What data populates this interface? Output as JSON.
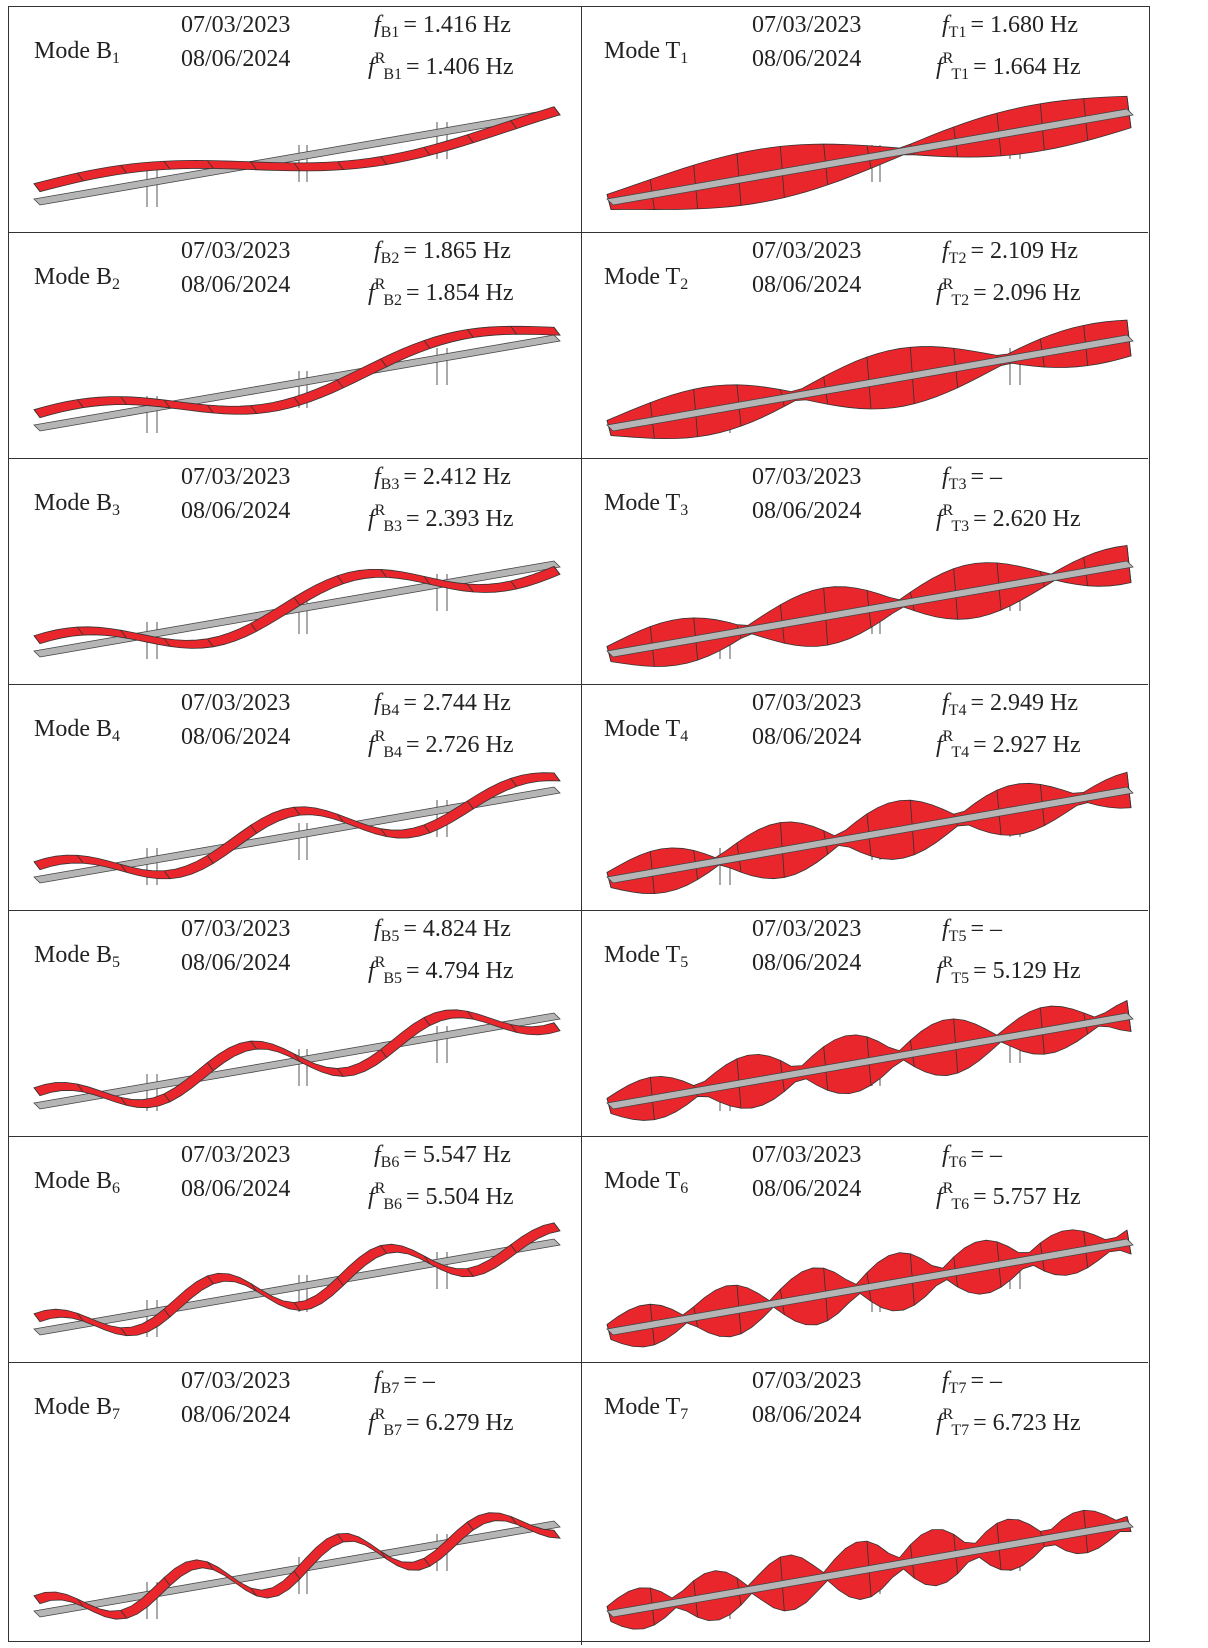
{
  "symbol": "f",
  "ref_superscript": "R",
  "columns": [
    [
      {
        "label": "Mode B",
        "label_sub": "1",
        "date1": "07/03/2023",
        "date2": "08/06/2024",
        "f1_sub": "B1",
        "f1_text": "= 1.416 Hz",
        "f2_sub": "B1",
        "f2_text": "= 1.406 Hz"
      },
      {
        "label": "Mode B",
        "label_sub": "2",
        "date1": "07/03/2023",
        "date2": "08/06/2024",
        "f1_sub": "B2",
        "f1_text": "= 1.865 Hz",
        "f2_sub": "B2",
        "f2_text": "= 1.854 Hz"
      },
      {
        "label": "Mode B",
        "label_sub": "3",
        "date1": "07/03/2023",
        "date2": "08/06/2024",
        "f1_sub": "B3",
        "f1_text": "= 2.412 Hz",
        "f2_sub": "B3",
        "f2_text": "= 2.393 Hz"
      },
      {
        "label": "Mode B",
        "label_sub": "4",
        "date1": "07/03/2023",
        "date2": "08/06/2024",
        "f1_sub": "B4",
        "f1_text": "= 2.744 Hz",
        "f2_sub": "B4",
        "f2_text": "= 2.726 Hz"
      },
      {
        "label": "Mode B",
        "label_sub": "5",
        "date1": "07/03/2023",
        "date2": "08/06/2024",
        "f1_sub": "B5",
        "f1_text": "= 4.824 Hz",
        "f2_sub": "B5",
        "f2_text": "= 4.794 Hz"
      },
      {
        "label": "Mode B",
        "label_sub": "6",
        "date1": "07/03/2023",
        "date2": "08/06/2024",
        "f1_sub": "B6",
        "f1_text": "= 5.547 Hz",
        "f2_sub": "B6",
        "f2_text": "= 5.504 Hz"
      },
      {
        "label": "Mode B",
        "label_sub": "7",
        "date1": "07/03/2023",
        "date2": "08/06/2024",
        "f1_sub": "B7",
        "f1_text": "= –",
        "f2_sub": "B7",
        "f2_text": "= 6.279 Hz"
      }
    ],
    [
      {
        "label": "Mode T",
        "label_sub": "1",
        "date1": "07/03/2023",
        "date2": "08/06/2024",
        "f1_sub": "T1",
        "f1_text": "= 1.680 Hz",
        "f2_sub": "T1",
        "f2_text": "= 1.664 Hz"
      },
      {
        "label": "Mode T",
        "label_sub": "2",
        "date1": "07/03/2023",
        "date2": "08/06/2024",
        "f1_sub": "T2",
        "f1_text": "= 2.109 Hz",
        "f2_sub": "T2",
        "f2_text": "= 2.096 Hz"
      },
      {
        "label": "Mode T",
        "label_sub": "3",
        "date1": "07/03/2023",
        "date2": "08/06/2024",
        "f1_sub": "T3",
        "f1_text": "= –",
        "f2_sub": "T3",
        "f2_text": "= 2.620 Hz"
      },
      {
        "label": "Mode T",
        "label_sub": "4",
        "date1": "07/03/2023",
        "date2": "08/06/2024",
        "f1_sub": "T4",
        "f1_text": "= 2.949 Hz",
        "f2_sub": "T4",
        "f2_text": "= 2.927 Hz"
      },
      {
        "label": "Mode T",
        "label_sub": "5",
        "date1": "07/03/2023",
        "date2": "08/06/2024",
        "f1_sub": "T5",
        "f1_text": "= –",
        "f2_sub": "T5",
        "f2_text": "= 5.129 Hz"
      },
      {
        "label": "Mode T",
        "label_sub": "6",
        "date1": "07/03/2023",
        "date2": "08/06/2024",
        "f1_sub": "T6",
        "f1_text": "= –",
        "f2_sub": "T6",
        "f2_text": "= 5.757 Hz"
      },
      {
        "label": "Mode T",
        "label_sub": "7",
        "date1": "07/03/2023",
        "date2": "08/06/2024",
        "f1_sub": "T7",
        "f1_text": "= –",
        "f2_sub": "T7",
        "f2_text": "= 6.723 Hz"
      }
    ]
  ]
}
